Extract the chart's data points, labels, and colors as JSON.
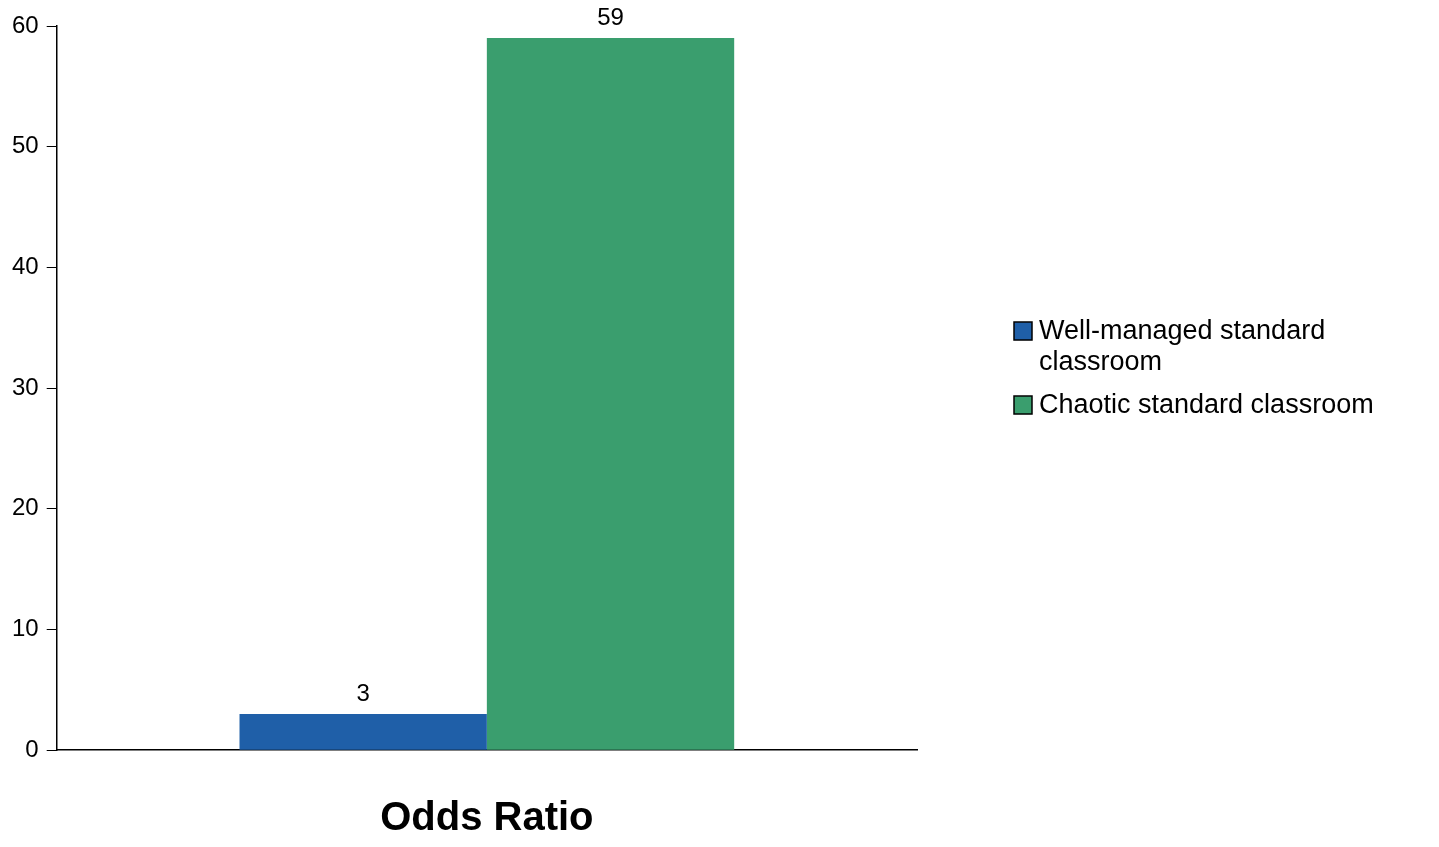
{
  "chart_data": {
    "type": "bar",
    "xlabel": "Odds Ratio",
    "categories": [
      null
    ],
    "series": [
      {
        "name": "Well-managed standard classroom",
        "color": "#1f5fa8",
        "values": [
          3
        ]
      },
      {
        "name": "Chaotic standard classroom",
        "color": "#3a9e6e",
        "values": [
          59
        ]
      }
    ],
    "ylim": [
      0,
      60
    ],
    "yticks": [
      0,
      10,
      20,
      30,
      40,
      50,
      60
    ],
    "grid": false,
    "legend": "right",
    "data_labels": true
  }
}
